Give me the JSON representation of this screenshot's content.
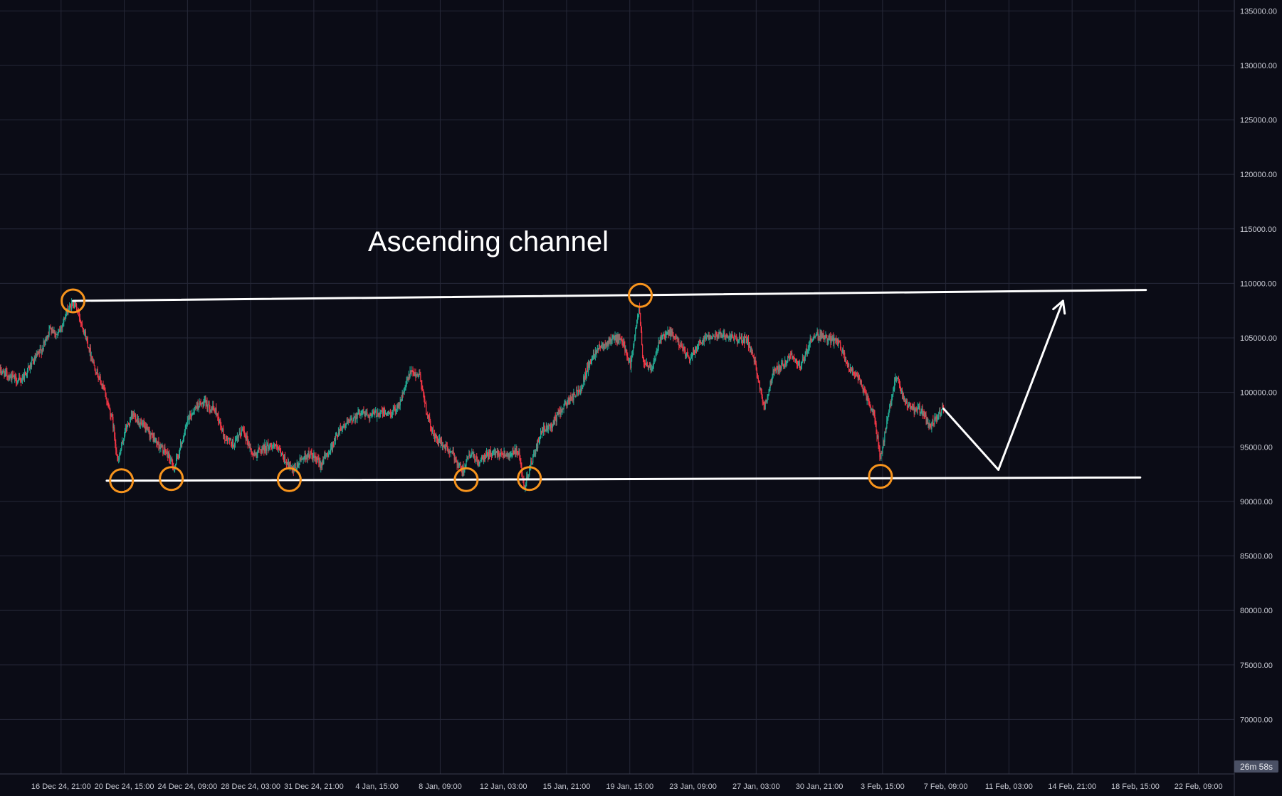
{
  "chart_data": {
    "type": "candlestick",
    "title": "Ascending channel",
    "countdown": "26m 58s",
    "colors": {
      "background": "#0b0c16",
      "grid": "#262838",
      "up": "#22ab94",
      "down": "#f23645",
      "annotation_line": "#ffffff",
      "marker": "#f7941d"
    },
    "grid": true,
    "xlim": [
      "2024-12-13T06:00",
      "2025-02-24T12:00"
    ],
    "ylim": [
      65000,
      136000
    ],
    "y_ticks": [
      70000,
      75000,
      80000,
      85000,
      90000,
      95000,
      100000,
      105000,
      110000,
      115000,
      120000,
      125000,
      130000,
      135000
    ],
    "y_tick_labels": [
      "70000.00",
      "75000.00",
      "80000.00",
      "85000.00",
      "90000.00",
      "95000.00",
      "100000.00",
      "105000.00",
      "110000.00",
      "115000.00",
      "120000.00",
      "125000.00",
      "130000.00",
      "135000.00"
    ],
    "x_ticks": [
      {
        "t": "2024-12-16T21:00",
        "label": "16 Dec 24, 21:00"
      },
      {
        "t": "2024-12-20T15:00",
        "label": "20 Dec 24, 15:00"
      },
      {
        "t": "2024-12-24T09:00",
        "label": "24 Dec 24, 09:00"
      },
      {
        "t": "2024-12-28T03:00",
        "label": "28 Dec 24, 03:00"
      },
      {
        "t": "2024-12-31T21:00",
        "label": "31 Dec 24, 21:00"
      },
      {
        "t": "2025-01-04T15:00",
        "label": "4 Jan, 15:00"
      },
      {
        "t": "2025-01-08T09:00",
        "label": "8 Jan, 09:00"
      },
      {
        "t": "2025-01-12T03:00",
        "label": "12 Jan, 03:00"
      },
      {
        "t": "2025-01-15T21:00",
        "label": "15 Jan, 21:00"
      },
      {
        "t": "2025-01-19T15:00",
        "label": "19 Jan, 15:00"
      },
      {
        "t": "2025-01-23T09:00",
        "label": "23 Jan, 09:00"
      },
      {
        "t": "2025-01-27T03:00",
        "label": "27 Jan, 03:00"
      },
      {
        "t": "2025-01-30T21:00",
        "label": "30 Jan, 21:00"
      },
      {
        "t": "2025-02-03T15:00",
        "label": "3 Feb, 15:00"
      },
      {
        "t": "2025-02-07T09:00",
        "label": "7 Feb, 09:00"
      },
      {
        "t": "2025-02-11T03:00",
        "label": "11 Feb, 03:00"
      },
      {
        "t": "2025-02-14T21:00",
        "label": "14 Feb, 21:00"
      },
      {
        "t": "2025-02-18T15:00",
        "label": "18 Feb, 15:00"
      },
      {
        "t": "2025-02-22T09:00",
        "label": "22 Feb, 09:00"
      }
    ],
    "price_path": [
      [
        "2024-12-13T06:00",
        102000
      ],
      [
        "2024-12-13T20:00",
        101500
      ],
      [
        "2024-12-14T10:00",
        101000
      ],
      [
        "2024-12-15T02:00",
        102500
      ],
      [
        "2024-12-15T18:00",
        104000
      ],
      [
        "2024-12-16T06:00",
        106000
      ],
      [
        "2024-12-16T16:00",
        105200
      ],
      [
        "2024-12-17T06:00",
        107500
      ],
      [
        "2024-12-17T16:00",
        108300
      ],
      [
        "2024-12-18T04:00",
        106000
      ],
      [
        "2024-12-18T20:00",
        102500
      ],
      [
        "2024-12-19T10:00",
        100200
      ],
      [
        "2024-12-19T22:00",
        97500
      ],
      [
        "2024-12-20T06:00",
        93500
      ],
      [
        "2024-12-20T16:00",
        96500
      ],
      [
        "2024-12-21T04:00",
        98000
      ],
      [
        "2024-12-21T16:00",
        97000
      ],
      [
        "2024-12-22T06:00",
        96000
      ],
      [
        "2024-12-22T18:00",
        95000
      ],
      [
        "2024-12-23T06:00",
        94200
      ],
      [
        "2024-12-23T14:00",
        93000
      ],
      [
        "2024-12-23T22:00",
        94800
      ],
      [
        "2024-12-24T10:00",
        97500
      ],
      [
        "2024-12-24T22:00",
        98800
      ],
      [
        "2024-12-25T12:00",
        99000
      ],
      [
        "2024-12-26T02:00",
        98200
      ],
      [
        "2024-12-26T14:00",
        95800
      ],
      [
        "2024-12-27T04:00",
        95200
      ],
      [
        "2024-12-27T16:00",
        96700
      ],
      [
        "2024-12-28T06:00",
        94200
      ],
      [
        "2024-12-28T20:00",
        94900
      ],
      [
        "2024-12-29T12:00",
        95200
      ],
      [
        "2024-12-30T02:00",
        94000
      ],
      [
        "2024-12-30T16:00",
        92700
      ],
      [
        "2024-12-31T04:00",
        94000
      ],
      [
        "2024-12-31T16:00",
        94300
      ],
      [
        "2025-01-01T06:00",
        93400
      ],
      [
        "2025-01-01T20:00",
        94700
      ],
      [
        "2025-01-02T10:00",
        96700
      ],
      [
        "2025-01-03T00:00",
        97300
      ],
      [
        "2025-01-03T14:00",
        98200
      ],
      [
        "2025-01-04T06:00",
        97900
      ],
      [
        "2025-01-04T20:00",
        98200
      ],
      [
        "2025-01-05T10:00",
        98000
      ],
      [
        "2025-01-06T00:00",
        99100
      ],
      [
        "2025-01-06T14:00",
        101800
      ],
      [
        "2025-01-07T04:00",
        101600
      ],
      [
        "2025-01-07T14:00",
        98000
      ],
      [
        "2025-01-08T00:00",
        96000
      ],
      [
        "2025-01-08T14:00",
        95100
      ],
      [
        "2025-01-09T04:00",
        94200
      ],
      [
        "2025-01-09T16:00",
        92800
      ],
      [
        "2025-01-10T04:00",
        94400
      ],
      [
        "2025-01-10T16:00",
        93500
      ],
      [
        "2025-01-11T06:00",
        94400
      ],
      [
        "2025-01-11T20:00",
        94500
      ],
      [
        "2025-01-12T10:00",
        94300
      ],
      [
        "2025-01-13T00:00",
        94600
      ],
      [
        "2025-01-13T08:00",
        91200
      ],
      [
        "2025-01-13T20:00",
        93800
      ],
      [
        "2025-01-14T10:00",
        96400
      ],
      [
        "2025-01-15T00:00",
        97000
      ],
      [
        "2025-01-15T14:00",
        98500
      ],
      [
        "2025-01-16T04:00",
        99500
      ],
      [
        "2025-01-16T16:00",
        100200
      ],
      [
        "2025-01-17T06:00",
        102800
      ],
      [
        "2025-01-17T18:00",
        104200
      ],
      [
        "2025-01-18T06:00",
        104600
      ],
      [
        "2025-01-18T18:00",
        105000
      ],
      [
        "2025-01-19T06:00",
        104500
      ],
      [
        "2025-01-19T16:00",
        102500
      ],
      [
        "2025-01-20T04:00",
        107800
      ],
      [
        "2025-01-20T10:00",
        102800
      ],
      [
        "2025-01-20T22:00",
        102300
      ],
      [
        "2025-01-21T10:00",
        104800
      ],
      [
        "2025-01-22T00:00",
        105500
      ],
      [
        "2025-01-22T14:00",
        104500
      ],
      [
        "2025-01-23T04:00",
        102900
      ],
      [
        "2025-01-23T16:00",
        104500
      ],
      [
        "2025-01-24T06:00",
        105200
      ],
      [
        "2025-01-24T20:00",
        105300
      ],
      [
        "2025-01-25T10:00",
        105200
      ],
      [
        "2025-01-26T00:00",
        104900
      ],
      [
        "2025-01-26T14:00",
        104800
      ],
      [
        "2025-01-27T04:00",
        102000
      ],
      [
        "2025-01-27T14:00",
        98500
      ],
      [
        "2025-01-28T04:00",
        102000
      ],
      [
        "2025-01-28T16:00",
        102500
      ],
      [
        "2025-01-29T06:00",
        103500
      ],
      [
        "2025-01-29T18:00",
        102200
      ],
      [
        "2025-01-30T08:00",
        104800
      ],
      [
        "2025-01-30T20:00",
        105300
      ],
      [
        "2025-01-31T10:00",
        104900
      ],
      [
        "2025-02-01T00:00",
        104600
      ],
      [
        "2025-02-01T14:00",
        102400
      ],
      [
        "2025-02-02T04:00",
        101400
      ],
      [
        "2025-02-02T16:00",
        99600
      ],
      [
        "2025-02-03T04:00",
        97600
      ],
      [
        "2025-02-03T12:00",
        93800
      ],
      [
        "2025-02-03T22:00",
        97500
      ],
      [
        "2025-02-04T10:00",
        101500
      ],
      [
        "2025-02-04T22:00",
        99200
      ],
      [
        "2025-02-05T10:00",
        98400
      ],
      [
        "2025-02-05T22:00",
        98400
      ],
      [
        "2025-02-06T10:00",
        96800
      ],
      [
        "2025-02-06T20:00",
        97700
      ],
      [
        "2025-02-07T06:00",
        98600
      ]
    ],
    "annotations": {
      "upper_line": {
        "from": [
          "2024-12-17T14:00",
          108400
        ],
        "to": [
          "2025-02-19T06:00",
          109400
        ]
      },
      "lower_line": {
        "from": [
          "2024-12-19T14:00",
          91900
        ],
        "to": [
          "2025-02-18T22:00",
          92200
        ]
      },
      "projection": [
        [
          "2025-02-07T06:00",
          98500
        ],
        [
          "2025-02-10T12:00",
          92900
        ],
        [
          "2025-02-14T08:00",
          108400
        ]
      ],
      "touch_points": [
        [
          "2024-12-17T14:00",
          108400
        ],
        [
          "2024-12-20T11:00",
          91900
        ],
        [
          "2024-12-23T10:00",
          92100
        ],
        [
          "2024-12-30T10:00",
          92000
        ],
        [
          "2025-01-09T22:00",
          92000
        ],
        [
          "2025-01-13T16:00",
          92100
        ],
        [
          "2025-01-20T06:00",
          108900
        ],
        [
          "2025-02-03T12:00",
          92300
        ]
      ]
    }
  }
}
